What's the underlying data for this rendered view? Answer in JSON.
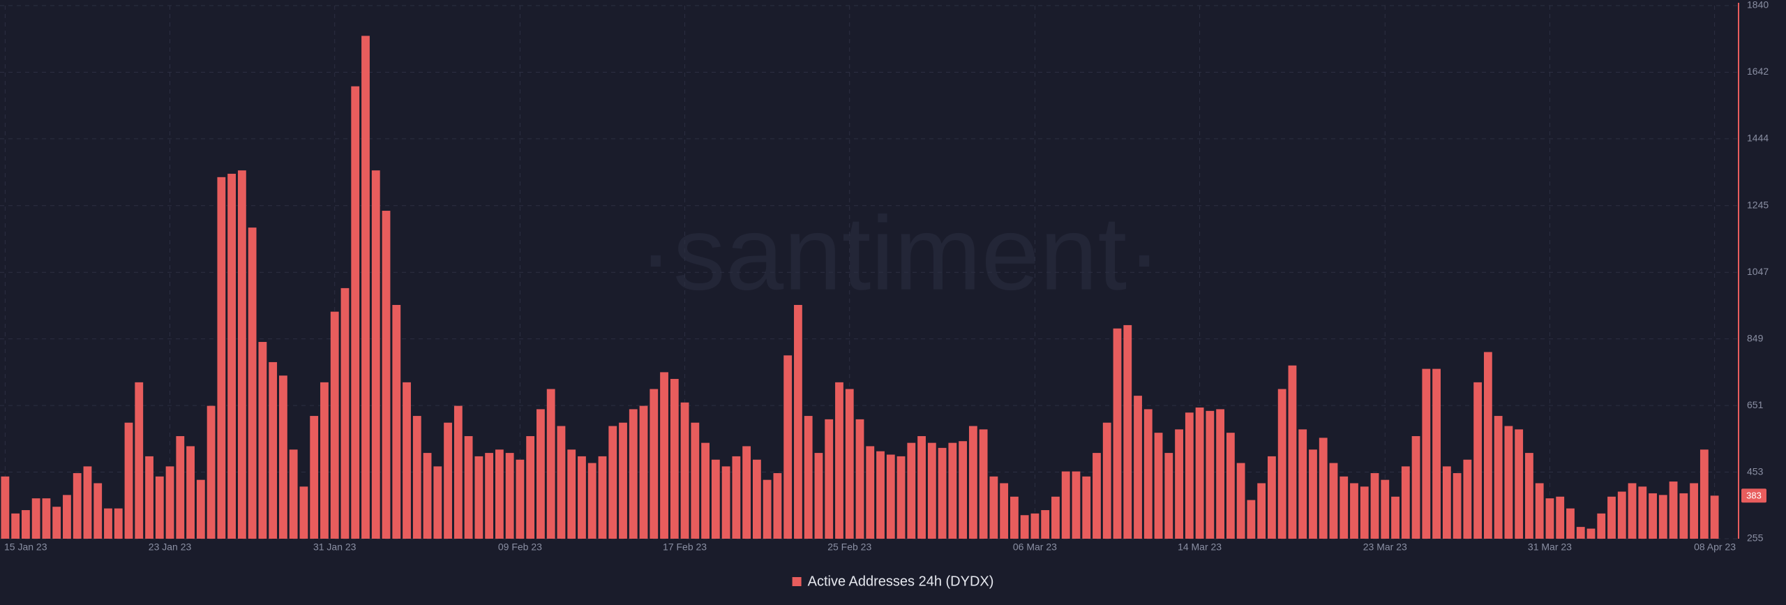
{
  "chart_data": {
    "type": "bar",
    "watermark": "·santiment·",
    "categories": [
      "15 Jan 23",
      null,
      null,
      null,
      null,
      null,
      null,
      null,
      null,
      null,
      null,
      null,
      null,
      null,
      null,
      null,
      "23 Jan 23",
      null,
      null,
      null,
      null,
      null,
      null,
      null,
      null,
      null,
      null,
      null,
      null,
      null,
      null,
      null,
      "31 Jan 23",
      null,
      null,
      null,
      null,
      null,
      null,
      null,
      null,
      null,
      null,
      null,
      null,
      null,
      null,
      null,
      null,
      null,
      "09 Feb 23",
      null,
      null,
      null,
      null,
      null,
      null,
      null,
      null,
      null,
      null,
      null,
      null,
      null,
      null,
      null,
      "17 Feb 23",
      null,
      null,
      null,
      null,
      null,
      null,
      null,
      null,
      null,
      null,
      null,
      null,
      null,
      null,
      null,
      "25 Feb 23",
      null,
      null,
      null,
      null,
      null,
      null,
      null,
      null,
      null,
      null,
      null,
      null,
      null,
      null,
      null,
      null,
      null,
      "06 Mar 23",
      null,
      null,
      null,
      null,
      null,
      null,
      null,
      null,
      null,
      null,
      null,
      null,
      null,
      null,
      null,
      "14 Mar 23",
      null,
      null,
      null,
      null,
      null,
      null,
      null,
      null,
      null,
      null,
      null,
      null,
      null,
      null,
      null,
      null,
      null,
      "23 Mar 23",
      null,
      null,
      null,
      null,
      null,
      null,
      null,
      null,
      null,
      null,
      null,
      null,
      null,
      null,
      null,
      "31 Mar 23",
      null,
      null,
      null,
      null,
      null,
      null,
      null,
      null,
      null,
      null,
      null,
      null,
      null,
      null,
      null,
      "08 Apr 23"
    ],
    "series": [
      {
        "name": "Active Addresses 24h (DYDX)",
        "color": "#e85d5d",
        "values": [
          440,
          330,
          340,
          375,
          375,
          350,
          385,
          450,
          470,
          420,
          345,
          345,
          600,
          720,
          500,
          440,
          470,
          560,
          530,
          430,
          650,
          1330,
          1340,
          1350,
          1180,
          840,
          780,
          740,
          520,
          410,
          620,
          720,
          930,
          1000,
          1600,
          1750,
          1350,
          1230,
          950,
          720,
          620,
          510,
          470,
          600,
          650,
          560,
          500,
          510,
          520,
          510,
          490,
          560,
          640,
          700,
          590,
          520,
          500,
          480,
          500,
          590,
          600,
          640,
          650,
          700,
          750,
          730,
          660,
          600,
          540,
          490,
          470,
          500,
          530,
          490,
          430,
          450,
          800,
          950,
          620,
          510,
          610,
          720,
          700,
          610,
          530,
          515,
          505,
          500,
          540,
          560,
          540,
          525,
          540,
          545,
          590,
          580,
          440,
          420,
          380,
          325,
          330,
          340,
          380,
          455,
          455,
          440,
          510,
          600,
          880,
          890,
          680,
          640,
          570,
          510,
          580,
          630,
          645,
          635,
          640,
          570,
          480,
          370,
          420,
          500,
          700,
          770,
          580,
          520,
          555,
          480,
          440,
          420,
          410,
          450,
          430,
          380,
          470,
          560,
          760,
          760,
          470,
          450,
          490,
          720,
          810,
          620,
          590,
          580,
          510,
          420,
          375,
          380,
          345,
          290,
          285,
          330,
          380,
          395,
          420,
          410,
          390,
          385,
          425,
          390,
          420,
          520,
          383
        ]
      }
    ],
    "ylim": [
      255,
      1840
    ],
    "yticks": [
      255,
      453,
      651,
      849,
      1047,
      1245,
      1444,
      1642,
      1840
    ],
    "grid": true
  }
}
